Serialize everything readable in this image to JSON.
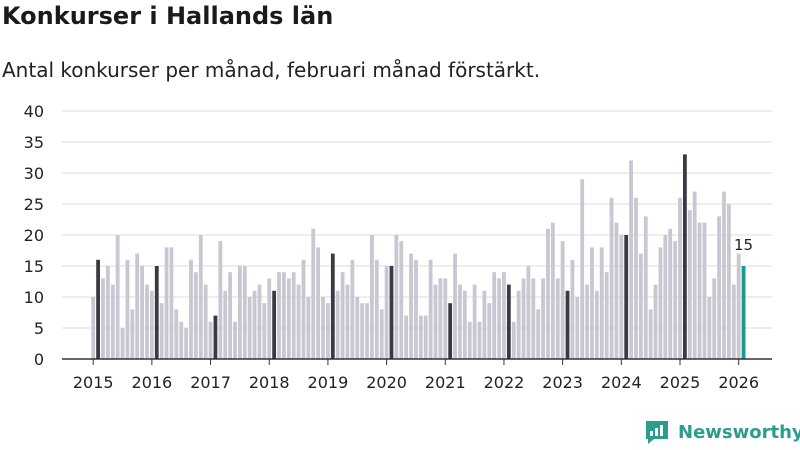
{
  "header": {
    "title": "Konkurser i Hallands län",
    "subtitle": "Antal konkurser per månad, februari månad förstärkt."
  },
  "brand": {
    "name": "Newsworthy",
    "color": "#2a9d8f"
  },
  "chart_data": {
    "type": "bar",
    "title": "Konkurser i Hallands län",
    "subtitle": "Antal konkurser per månad, februari månad förstärkt.",
    "xlabel": "",
    "ylabel": "",
    "ylim": [
      0,
      40
    ],
    "yticks": [
      0,
      5,
      10,
      15,
      20,
      25,
      30,
      35,
      40
    ],
    "grid": true,
    "start": "2015-01",
    "x_tick_labels": [
      "2015",
      "2016",
      "2017",
      "2018",
      "2019",
      "2020",
      "2021",
      "2022",
      "2023",
      "2024",
      "2025",
      "2026"
    ],
    "values": [
      10,
      16,
      13,
      15,
      12,
      20,
      5,
      16,
      8,
      17,
      15,
      12,
      11,
      15,
      9,
      18,
      18,
      8,
      6,
      5,
      16,
      14,
      20,
      12,
      6,
      7,
      19,
      11,
      14,
      6,
      15,
      15,
      10,
      11,
      12,
      9,
      13,
      11,
      14,
      14,
      13,
      14,
      12,
      16,
      10,
      21,
      18,
      10,
      9,
      17,
      11,
      14,
      12,
      16,
      10,
      9,
      9,
      20,
      16,
      8,
      15,
      15,
      20,
      19,
      7,
      17,
      16,
      7,
      7,
      16,
      12,
      13,
      13,
      9,
      17,
      12,
      11,
      6,
      12,
      6,
      11,
      9,
      14,
      13,
      14,
      12,
      6,
      11,
      13,
      15,
      13,
      8,
      13,
      21,
      22,
      13,
      19,
      11,
      16,
      10,
      29,
      12,
      18,
      11,
      18,
      14,
      26,
      22,
      20,
      20,
      32,
      26,
      17,
      23,
      8,
      12,
      18,
      20,
      21,
      19,
      26,
      33,
      24,
      27,
      22,
      22,
      10,
      13,
      23,
      27,
      25,
      12,
      17,
      15
    ],
    "highlight_month": "February",
    "last_value_label": "15",
    "colors": {
      "normal": "#c8c7d2",
      "february": "#3a3a45",
      "latest": "#1a9a8c",
      "grid": "#dddddd",
      "axis": "#333333"
    }
  }
}
